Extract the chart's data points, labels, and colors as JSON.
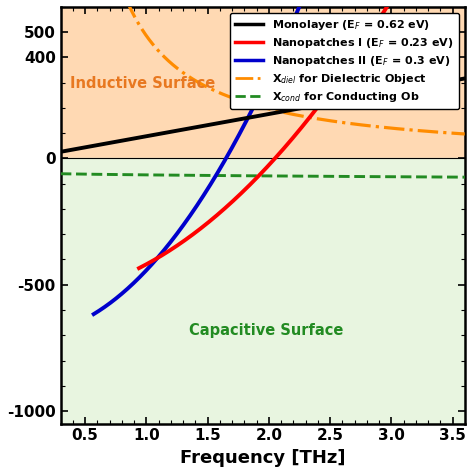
{
  "xlabel": "Frequency [THz]",
  "xlim": [
    0.3,
    3.6
  ],
  "ylim": [
    -1050,
    600
  ],
  "yticks": [
    -1000,
    -500,
    0,
    400,
    500
  ],
  "xticks": [
    0.5,
    1.0,
    1.5,
    2.0,
    2.5,
    3.0,
    3.5
  ],
  "ytick_labels": [
    "-1000",
    "-500",
    "0",
    "400",
    "500"
  ],
  "inductive_label": "Inductive Surface",
  "capacitive_label": "Capacitive Surface",
  "inductive_color": "#ffd9b3",
  "capacitive_color": "#e8f5e0",
  "label_color_inductive": "#e87820",
  "label_color_capacitive": "#228B22",
  "mono_color": "#000000",
  "nano1_color": "#ff0000",
  "nano2_color": "#0000cc",
  "xdiel_color": "#ff8c00",
  "xcond_color": "#228B22",
  "legend_labels": [
    "Monolayer (E$_F$ = 0.62 eV)",
    "Nanopatches I (E$_F$ = 0.23 eV)",
    "Nanopatches II (E$_F$ = 0.3 eV)",
    "X$_{diel}$ for Dielectric Object",
    "X$_{cond}$ for Conducting Ob"
  ]
}
